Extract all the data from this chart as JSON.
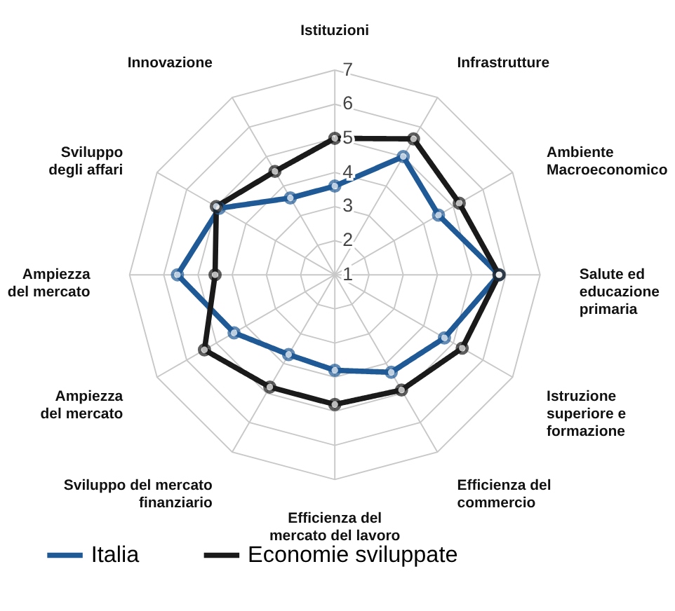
{
  "chart_data": {
    "type": "radar",
    "categories": [
      "Istituzioni",
      "Infrastrutture",
      "Ambiente\nMacroeconomico",
      "Salute ed\neducazione\nprimaria",
      "Istruzione\nsuperiore e\nformazione",
      "Efficienza del\ncommercio",
      "Efficienza del\nmercato del lavoro",
      "Sviluppo del mercato\nfinanziario",
      "Ampiezza\ndel mercato",
      "Ampiezza\ndel mercato",
      "Sviluppo\ndegli affari",
      "Innovazione"
    ],
    "series": [
      {
        "name": "Italia",
        "color": "#1f5a96",
        "values": [
          3.6,
          5.0,
          4.5,
          5.8,
          4.7,
          4.3,
          3.8,
          3.7,
          4.4,
          5.6,
          4.9,
          3.6
        ]
      },
      {
        "name": "Economie sviluppate",
        "color": "#1a1a1a",
        "values": [
          5.0,
          5.6,
          5.2,
          5.8,
          5.3,
          4.9,
          4.8,
          4.8,
          5.4,
          4.5,
          5.0,
          4.5
        ]
      }
    ],
    "ylim": [
      1,
      7
    ],
    "yticks": [
      1,
      2,
      3,
      4,
      5,
      6,
      7
    ],
    "grid": true,
    "marker": "circle",
    "line_style": "solid",
    "legend": "bottom left"
  }
}
